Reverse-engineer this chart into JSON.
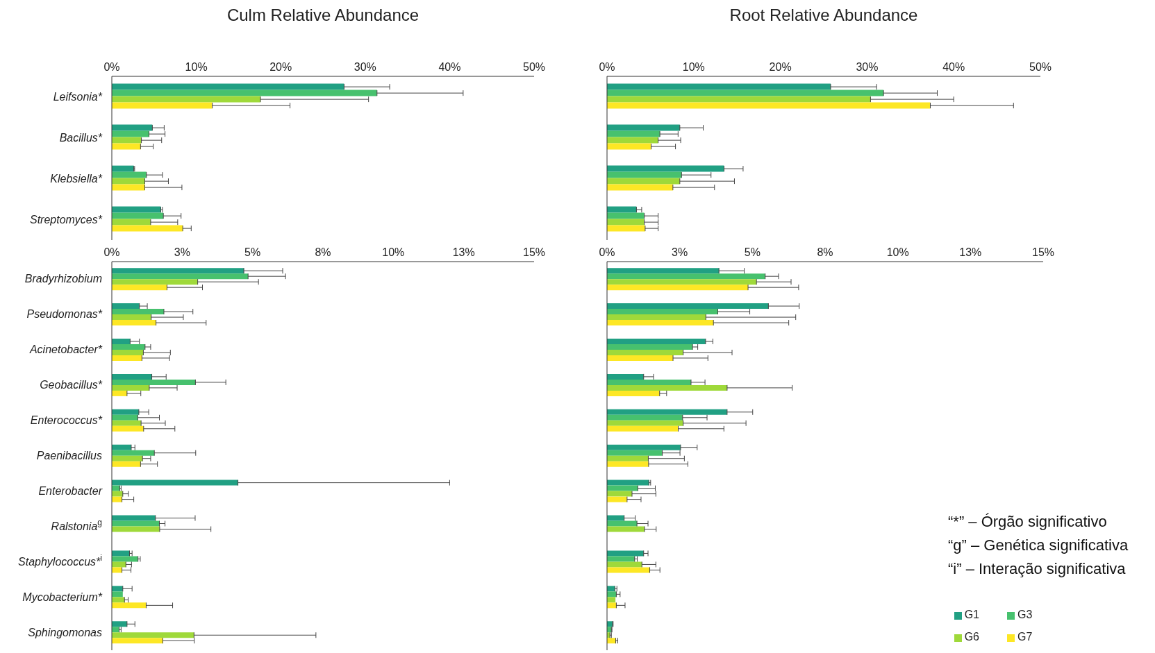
{
  "chart_data": [
    {
      "type": "bar",
      "orientation": "horizontal",
      "title": "Culm Relative Abundance",
      "categories": [
        "Leifsonia*",
        "Bacillus*",
        "Klebsiella*",
        "Streptomyces*"
      ],
      "series": [
        {
          "color": "#21a083",
          "values": [
            27.5,
            4.8,
            2.6,
            5.8
          ],
          "errors": [
            [
              27.5,
              32.9
            ],
            [
              4.8,
              6.2
            ],
            [
              2.6,
              2.7
            ],
            [
              5.8,
              6.0
            ]
          ]
        },
        {
          "color": "#47c16e",
          "values": [
            31.4,
            4.4,
            4.1,
            6.1
          ],
          "errors": [
            [
              31.4,
              41.6
            ],
            [
              4.4,
              6.3
            ],
            [
              4.1,
              6.0
            ],
            [
              6.1,
              8.2
            ]
          ]
        },
        {
          "color": "#9fd93a",
          "values": [
            17.6,
            3.5,
            3.9,
            4.6
          ],
          "errors": [
            [
              17.6,
              30.4
            ],
            [
              3.5,
              5.9
            ],
            [
              3.9,
              6.7
            ],
            [
              4.6,
              7.8
            ]
          ]
        },
        {
          "color": "#fde725",
          "values": [
            11.9,
            3.4,
            3.9,
            8.4
          ],
          "errors": [
            [
              11.9,
              21.1
            ],
            [
              3.4,
              4.9
            ],
            [
              3.9,
              8.3
            ],
            [
              8.4,
              9.4
            ]
          ]
        }
      ],
      "xlim": [
        0,
        50
      ],
      "xticks": [
        {
          "value": 0,
          "label": "0%"
        },
        {
          "value": 10,
          "label": "10%"
        },
        {
          "value": 20,
          "label": "20%"
        },
        {
          "value": 30,
          "label": "30%"
        },
        {
          "value": 40,
          "label": "40%"
        },
        {
          "value": 50,
          "label": "50%"
        }
      ]
    },
    {
      "type": "bar",
      "orientation": "horizontal",
      "title": "Root Relative Abundance",
      "categories": [
        null,
        null,
        null,
        null
      ],
      "tick_labels": "x",
      "series": [
        {
          "color": "#21a083",
          "values": [
            25.8,
            8.4,
            13.5,
            3.4
          ],
          "errors": [
            [
              25.8,
              31.1
            ],
            [
              8.4,
              11.1
            ],
            [
              13.5,
              15.7
            ],
            [
              3.4,
              4.0
            ]
          ]
        },
        {
          "color": "#47c16e",
          "values": [
            31.9,
            6.1,
            8.6,
            4.3
          ],
          "errors": [
            [
              31.9,
              38.1
            ],
            [
              6.1,
              8.2
            ],
            [
              8.6,
              12.0
            ],
            [
              4.3,
              5.9
            ]
          ]
        },
        {
          "color": "#9fd93a",
          "values": [
            30.4,
            5.9,
            8.4,
            4.3
          ],
          "errors": [
            [
              30.4,
              40.0
            ],
            [
              5.9,
              8.5
            ],
            [
              8.4,
              14.7
            ],
            [
              4.3,
              5.9
            ]
          ]
        },
        {
          "color": "#fde725",
          "values": [
            37.3,
            5.1,
            7.6,
            4.4
          ],
          "errors": [
            [
              37.3,
              46.9
            ],
            [
              5.1,
              7.9
            ],
            [
              7.6,
              12.4
            ],
            [
              4.4,
              5.9
            ]
          ]
        }
      ],
      "xlim": [
        0,
        50
      ],
      "xticks": [
        {
          "value": 0,
          "label": "0%"
        },
        {
          "value": 10,
          "label": "10%"
        },
        {
          "value": 20,
          "label": "20%"
        },
        {
          "value": 30,
          "label": "30%"
        },
        {
          "value": 40,
          "label": "40%"
        },
        {
          "value": 50,
          "label": "50%"
        }
      ]
    },
    {
      "type": "bar",
      "orientation": "horizontal",
      "categories": [
        "Bradyrhizobium",
        "Pseudomonas*",
        "Acinetobacter*",
        "Geobacillus*",
        "Enterococcus*",
        "Paenibacillus",
        "Enterobacter",
        "Ralstonia$^{g}$",
        "Staphylococcus*$^{i}$",
        "Mycobacterium*",
        "Sphingomonas"
      ],
      "series": [
        {
          "color": "#21a083",
          "values": [
            4.69,
            0.98,
            0.65,
            1.42,
            0.96,
            0.69,
            4.48,
            1.55,
            0.63,
            0.39,
            0.54
          ],
          "errors": [
            [
              4.69,
              6.07
            ],
            [
              0.98,
              1.26
            ],
            [
              0.65,
              0.98
            ],
            [
              1.42,
              1.93
            ],
            [
              0.96,
              1.31
            ],
            [
              0.69,
              0.82
            ],
            [
              4.48,
              12.0
            ],
            [
              1.55,
              2.96
            ],
            [
              0.63,
              0.72
            ],
            [
              0.39,
              0.72
            ],
            [
              0.54,
              0.82
            ]
          ]
        },
        {
          "color": "#47c16e",
          "values": [
            4.84,
            1.85,
            1.18,
            2.97,
            0.92,
            1.51,
            0.28,
            1.69,
            0.93,
            0.39,
            0.26
          ],
          "errors": [
            [
              4.84,
              6.17
            ],
            [
              1.85,
              2.88
            ],
            [
              1.18,
              1.38
            ],
            [
              2.97,
              4.05
            ],
            [
              0.92,
              1.69
            ],
            [
              1.51,
              2.98
            ],
            [
              0.28,
              0.33
            ],
            [
              1.69,
              1.89
            ],
            [
              0.93,
              1.01
            ],
            null,
            [
              0.26,
              0.33
            ]
          ]
        },
        {
          "color": "#9fd93a",
          "values": [
            3.05,
            1.4,
            1.12,
            1.33,
            1.04,
            1.09,
            0.39,
            1.7,
            0.5,
            0.45,
            2.92
          ],
          "errors": [
            [
              3.05,
              5.21
            ],
            [
              1.4,
              2.54
            ],
            [
              1.12,
              2.08
            ],
            [
              1.33,
              2.32
            ],
            [
              1.04,
              1.9
            ],
            [
              1.09,
              1.38
            ],
            [
              0.39,
              0.59
            ],
            [
              1.7,
              3.52
            ],
            [
              0.5,
              0.7
            ],
            [
              0.45,
              0.58
            ],
            [
              2.92,
              7.25
            ]
          ]
        },
        {
          "color": "#fde725",
          "values": [
            1.96,
            1.57,
            1.07,
            0.54,
            1.13,
            1.02,
            0.36,
            0,
            0.36,
            1.22,
            1.81
          ],
          "errors": [
            [
              1.96,
              3.22
            ],
            [
              1.57,
              3.35
            ],
            [
              1.07,
              2.05
            ],
            [
              0.54,
              1.03
            ],
            [
              1.13,
              2.24
            ],
            [
              1.02,
              1.62
            ],
            [
              0.36,
              0.78
            ],
            null,
            [
              0.36,
              0.68
            ],
            [
              1.22,
              2.16
            ],
            [
              1.81,
              2.93
            ]
          ]
        }
      ],
      "xlim": [
        0,
        15
      ],
      "xticks": [
        {
          "value": 0,
          "label": "0%"
        },
        {
          "value": 2.5,
          "label": "3%"
        },
        {
          "value": 5,
          "label": "5%"
        },
        {
          "value": 7.5,
          "label": "8%"
        },
        {
          "value": 10,
          "label": "10%"
        },
        {
          "value": 12.5,
          "label": "13%"
        },
        {
          "value": 15,
          "label": "15%"
        }
      ]
    },
    {
      "type": "bar",
      "orientation": "horizontal",
      "categories": [
        null,
        null,
        null,
        null,
        null,
        null,
        null,
        null,
        null,
        null,
        null
      ],
      "tick_labels": "x",
      "legend": "bottom right",
      "series": [
        {
          "name": "G1",
          "color": "#21a083",
          "values": [
            3.85,
            5.55,
            3.39,
            1.26,
            4.13,
            2.53,
            1.44,
            0.59,
            1.26,
            0.27,
            0.19
          ],
          "errors": [
            [
              3.85,
              4.72
            ],
            [
              5.55,
              6.61
            ],
            [
              3.39,
              3.64
            ],
            [
              1.26,
              1.6
            ],
            [
              4.13,
              5.01
            ],
            [
              2.53,
              3.1
            ],
            [
              1.44,
              1.5
            ],
            [
              0.59,
              0.97
            ],
            [
              1.26,
              1.41
            ],
            [
              0.27,
              0.34
            ],
            [
              0.19,
              0.21
            ]
          ]
        },
        {
          "name": "G3",
          "color": "#47c16e",
          "values": [
            5.44,
            3.81,
            2.94,
            2.89,
            2.6,
            1.9,
            1.06,
            1.03,
            0.95,
            0.32,
            0.15
          ],
          "errors": [
            [
              5.44,
              5.9
            ],
            [
              3.81,
              4.91
            ],
            [
              2.94,
              3.12
            ],
            [
              2.89,
              3.37
            ],
            [
              2.6,
              3.44
            ],
            [
              1.9,
              2.51
            ],
            [
              1.06,
              1.66
            ],
            [
              1.03,
              1.41
            ],
            [
              0.95,
              1.04
            ],
            [
              0.32,
              0.45
            ],
            [
              0.15,
              0.17
            ]
          ]
        },
        {
          "name": "G6",
          "color": "#9fd93a",
          "values": [
            5.14,
            3.4,
            2.62,
            4.13,
            2.62,
            1.42,
            0.86,
            1.29,
            1.2,
            0.29,
            0.1
          ],
          "errors": [
            [
              5.14,
              6.33
            ],
            [
              3.4,
              6.49
            ],
            [
              2.62,
              4.3
            ],
            [
              4.13,
              6.37
            ],
            [
              2.62,
              4.78
            ],
            [
              1.42,
              2.66
            ],
            [
              0.86,
              1.68
            ],
            [
              1.29,
              1.69
            ],
            [
              1.2,
              1.68
            ],
            null,
            [
              0.1,
              0.15
            ]
          ]
        },
        {
          "name": "G7",
          "color": "#fde725",
          "values": [
            4.85,
            3.66,
            2.27,
            1.81,
            2.45,
            1.43,
            0.69,
            0,
            1.47,
            0.32,
            0.3
          ],
          "errors": [
            [
              4.85,
              6.59
            ],
            [
              3.66,
              6.25
            ],
            [
              2.27,
              3.47
            ],
            [
              1.81,
              2.05
            ],
            [
              2.45,
              4.02
            ],
            [
              1.43,
              2.78
            ],
            [
              0.69,
              1.17
            ],
            null,
            [
              1.47,
              1.82
            ],
            [
              0.32,
              0.62
            ],
            [
              0.3,
              0.37
            ]
          ]
        }
      ],
      "xlim": [
        0,
        15
      ],
      "xticks": [
        {
          "value": 0,
          "label": "0%"
        },
        {
          "value": 2.5,
          "label": "3%"
        },
        {
          "value": 5,
          "label": "5%"
        },
        {
          "value": 7.5,
          "label": "8%"
        },
        {
          "value": 10,
          "label": "10%"
        },
        {
          "value": 12.5,
          "label": "13%"
        },
        {
          "value": 15,
          "label": "15%"
        }
      ],
      "annotations": [
        "“*” – Órgão significativo",
        "“g” – Genética significativa",
        "“i” – Interação significativa"
      ]
    }
  ]
}
